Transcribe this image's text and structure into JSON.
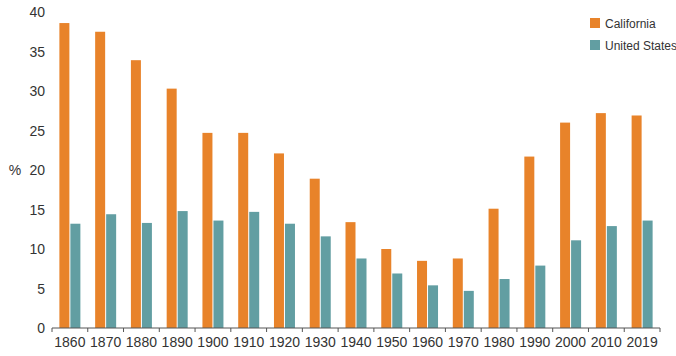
{
  "chart_data": {
    "type": "bar",
    "y_label": "%",
    "categories": [
      "1860",
      "1870",
      "1880",
      "1890",
      "1900",
      "1910",
      "1920",
      "1930",
      "1940",
      "1950",
      "1960",
      "1970",
      "1980",
      "1990",
      "2000",
      "2010",
      "2019"
    ],
    "series": [
      {
        "name": "California",
        "color": "#e8832a",
        "values": [
          38.6,
          37.5,
          33.9,
          30.3,
          24.7,
          24.7,
          22.1,
          18.9,
          13.4,
          10.0,
          8.5,
          8.8,
          15.1,
          21.7,
          26.0,
          27.2,
          26.9
        ]
      },
      {
        "name": "United States",
        "color": "#629ea2",
        "values": [
          13.2,
          14.4,
          13.3,
          14.8,
          13.6,
          14.7,
          13.2,
          11.6,
          8.8,
          6.9,
          5.4,
          4.7,
          6.2,
          7.9,
          11.1,
          12.9,
          13.6
        ]
      }
    ],
    "ylim": [
      0,
      40
    ],
    "yticks": [
      0,
      5,
      10,
      15,
      20,
      25,
      30,
      35,
      40
    ],
    "grid": false,
    "legend": "top-right"
  }
}
